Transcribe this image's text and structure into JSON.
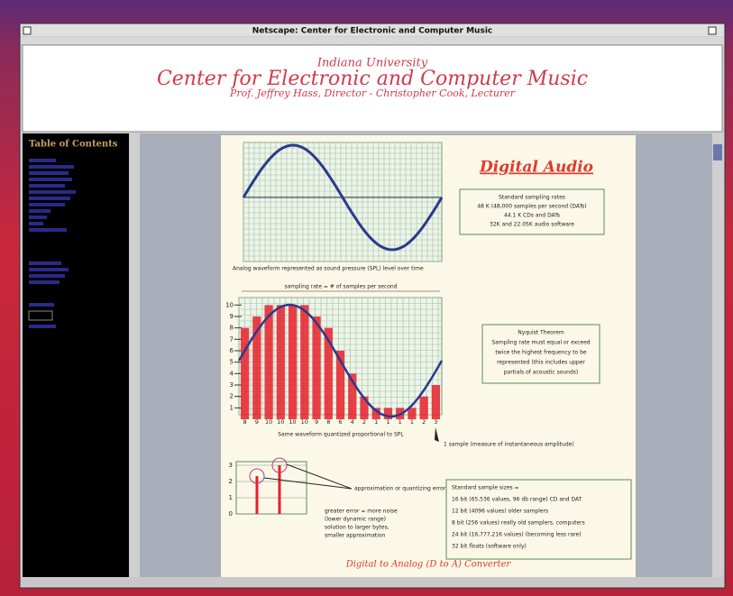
{
  "window": {
    "title": "Netscape: Center for Electronic and Computer Music"
  },
  "header": {
    "institution": "Indiana University",
    "center": "Center for Electronic and Computer Music",
    "staff": "Prof. Jeffrey Hass, Director - Christopher Cook, Lecturer"
  },
  "sidebar": {
    "heading": "Table of Contents"
  },
  "content": {
    "title": "Digital Audio",
    "sampling_rates": {
      "heading": "Standard sampling rates",
      "lines": [
        "48 K (48,000 samples per second (DATs)",
        "44.1 K CDs and DATs",
        "32K and 22.05K audio software"
      ]
    },
    "analog_caption": "Analog waveform represented as sound pressure (SPL) level over time",
    "sampling_label": "sampling rate = # of samples per second",
    "quantized": {
      "yticks": [
        1,
        2,
        3,
        4,
        5,
        6,
        7,
        8,
        9,
        10
      ],
      "samples": [
        8,
        9,
        10,
        10,
        10,
        10,
        9,
        8,
        6,
        4,
        2,
        1,
        1,
        1,
        1,
        2,
        3
      ]
    },
    "quantized_caption": "Same waveform quantized proportional to SPL",
    "sample_note": "1 sample (measure of instantaneous amplitude)",
    "nyquist": {
      "heading": "Nyquist Theorem",
      "lines": [
        "Sampling rate must equal or exceed",
        "twice the highest frequency to be",
        "represented (this includes upper",
        "partials of acoustic sounds)"
      ]
    },
    "error_label": "approximation or quantizing error",
    "error_notes": [
      "greater error = more noise",
      "(lower dynamic range)",
      "solution to larger bytes,",
      "smaller approximation"
    ],
    "small_chart_yticks": [
      0,
      1,
      2,
      3
    ],
    "sample_sizes": {
      "heading": "Standard sample sizes =",
      "lines": [
        "16 bit (65,536 values, 96 db range) CD and DAT",
        "12 bit (4096 values) older samplers",
        "8 bit (256 values) really old samplers, computers",
        "24 bit (16,777,216 values) (becoming less rare)",
        "32 bit floats (software only)"
      ]
    },
    "converter_title": "Digital to Analog (D to A) Converter"
  }
}
